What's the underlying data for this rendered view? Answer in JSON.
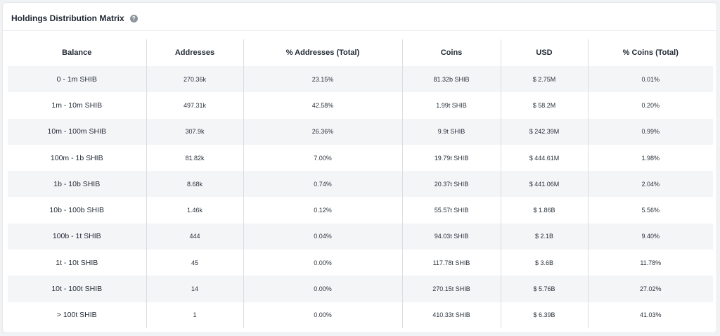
{
  "header": {
    "title": "Holdings Distribution Matrix",
    "help_icon": "question-circle-icon"
  },
  "table": {
    "columns": [
      "Balance",
      "Addresses",
      "% Addresses (Total)",
      "Coins",
      "USD",
      "% Coins (Total)"
    ],
    "rows": [
      [
        "0 - 1m SHIB",
        "270.36k",
        "23.15%",
        "81.32b SHIB",
        "$ 2.75M",
        "0.01%"
      ],
      [
        "1m - 10m SHIB",
        "497.31k",
        "42.58%",
        "1.99t SHIB",
        "$ 58.2M",
        "0.20%"
      ],
      [
        "10m - 100m SHIB",
        "307.9k",
        "26.36%",
        "9.9t SHIB",
        "$ 242.39M",
        "0.99%"
      ],
      [
        "100m - 1b SHIB",
        "81.82k",
        "7.00%",
        "19.79t SHIB",
        "$ 444.61M",
        "1.98%"
      ],
      [
        "1b - 10b SHIB",
        "8.68k",
        "0.74%",
        "20.37t SHIB",
        "$ 441.06M",
        "2.04%"
      ],
      [
        "10b - 100b SHIB",
        "1.46k",
        "0.12%",
        "55.57t SHIB",
        "$ 1.86B",
        "5.56%"
      ],
      [
        "100b - 1t SHIB",
        "444",
        "0.04%",
        "94.03t SHIB",
        "$ 2.1B",
        "9.40%"
      ],
      [
        "1t - 10t SHIB",
        "45",
        "0.00%",
        "117.78t SHIB",
        "$ 3.6B",
        "11.78%"
      ],
      [
        "10t - 100t SHIB",
        "14",
        "0.00%",
        "270.15t SHIB",
        "$ 5.76B",
        "27.02%"
      ],
      [
        "> 100t SHIB",
        "1",
        "0.00%",
        "410.33t SHIB",
        "$ 6.39B",
        "41.03%"
      ]
    ]
  },
  "colors": {
    "row_stripe": "#f4f5f7",
    "column_divider": "#d9dce1",
    "text": "#1f2733"
  }
}
